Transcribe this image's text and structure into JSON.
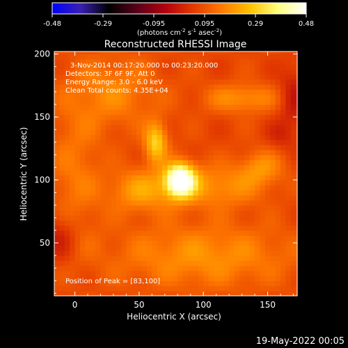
{
  "colorbar": {
    "ticks": [
      "-0.48",
      "-0.29",
      "-0.095",
      "0.095",
      "0.29",
      "0.48"
    ],
    "unit_main": "(photons cm",
    "unit_sup1": "-2",
    "unit_mid1": " s",
    "unit_sup2": "-1",
    "unit_mid2": " asec",
    "unit_sup3": "-2",
    "unit_end": ")",
    "colors": [
      "#0000ff",
      "#3a1fb2",
      "#000000",
      "#5a001a",
      "#b3000d",
      "#e33a00",
      "#ff7a00",
      "#ffc000",
      "#ffff80",
      "#ffffff"
    ]
  },
  "chart_data": {
    "type": "heatmap",
    "title": "Reconstructed RHESSI Image",
    "xlabel": "Heliocentric X (arcsec)",
    "ylabel": "Heliocentric Y (arcsec)",
    "xlim": [
      -16,
      173
    ],
    "ylim": [
      8,
      202
    ],
    "xticks": [
      "0",
      "50",
      "100",
      "150"
    ],
    "yticks": [
      "50",
      "100",
      "150",
      "200"
    ],
    "annotations": [
      "3-Nov-2014 00:17:20.000 to 00:23:20.000",
      "Detectors: 3F 6F 9F, Att 0",
      "Energy Range: 3.0 - 6.0 keV",
      "Clean     Total counts: 4.35E+04"
    ],
    "peak_label": "Position of Peak = [83,100]",
    "peak": [
      83,
      100
    ],
    "value_range": [
      -0.48,
      0.48
    ],
    "sources": [
      {
        "x": 82,
        "y": 100,
        "sx": 8,
        "sy": 9,
        "amp": 0.46
      },
      {
        "x": 63,
        "y": 130,
        "sx": 6,
        "sy": 11,
        "amp": 0.22
      },
      {
        "x": 52,
        "y": 92,
        "sx": 18,
        "sy": 12,
        "amp": 0.14
      },
      {
        "x": 110,
        "y": 95,
        "sx": 25,
        "sy": 12,
        "amp": 0.12
      },
      {
        "x": 130,
        "y": 165,
        "sx": 20,
        "sy": 8,
        "amp": 0.12
      },
      {
        "x": 30,
        "y": 170,
        "sx": 25,
        "sy": 20,
        "amp": 0.1
      },
      {
        "x": 100,
        "y": 40,
        "sx": 50,
        "sy": 18,
        "amp": 0.12
      },
      {
        "x": 0,
        "y": 105,
        "sx": 15,
        "sy": 40,
        "amp": 0.08
      },
      {
        "x": 145,
        "y": 110,
        "sx": 12,
        "sy": 10,
        "amp": 0.11
      }
    ],
    "negative_regions": [
      {
        "x": -12,
        "y": 55,
        "sx": 10,
        "sy": 14,
        "amp": -0.09
      },
      {
        "x": 170,
        "y": 165,
        "sx": 8,
        "sy": 18,
        "amp": -0.09
      },
      {
        "x": 160,
        "y": 135,
        "sx": 8,
        "sy": 8,
        "amp": -0.05
      }
    ]
  },
  "footer": {
    "date": "19-May-2022 00:05"
  }
}
